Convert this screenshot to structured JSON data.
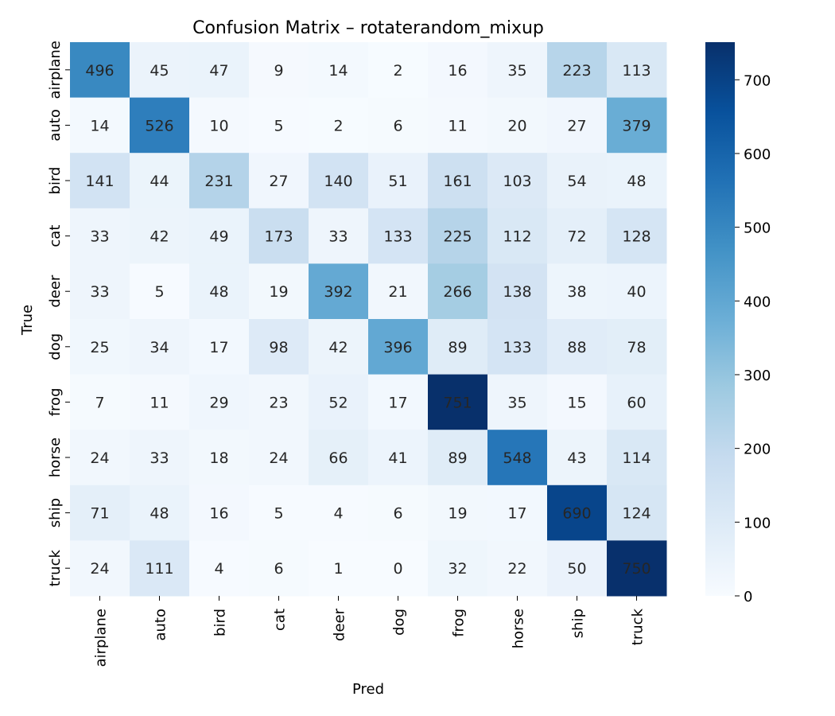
{
  "chart_data": {
    "type": "heatmap",
    "title": "Confusion Matrix – rotaterandom_mixup",
    "xlabel": "Pred",
    "ylabel": "True",
    "x_categories": [
      "airplane",
      "auto",
      "bird",
      "cat",
      "deer",
      "dog",
      "frog",
      "horse",
      "ship",
      "truck"
    ],
    "y_categories": [
      "airplane",
      "auto",
      "bird",
      "cat",
      "deer",
      "dog",
      "frog",
      "horse",
      "ship",
      "truck"
    ],
    "values": [
      [
        496,
        45,
        47,
        9,
        14,
        2,
        16,
        35,
        223,
        113
      ],
      [
        14,
        526,
        10,
        5,
        2,
        6,
        11,
        20,
        27,
        379
      ],
      [
        141,
        44,
        231,
        27,
        140,
        51,
        161,
        103,
        54,
        48
      ],
      [
        33,
        42,
        49,
        173,
        33,
        133,
        225,
        112,
        72,
        128
      ],
      [
        33,
        5,
        48,
        19,
        392,
        21,
        266,
        138,
        38,
        40
      ],
      [
        25,
        34,
        17,
        98,
        42,
        396,
        89,
        133,
        88,
        78
      ],
      [
        7,
        11,
        29,
        23,
        52,
        17,
        751,
        35,
        15,
        60
      ],
      [
        24,
        33,
        18,
        24,
        66,
        41,
        89,
        548,
        43,
        114
      ],
      [
        71,
        48,
        16,
        5,
        4,
        6,
        19,
        17,
        690,
        124
      ],
      [
        24,
        111,
        4,
        6,
        1,
        0,
        32,
        22,
        50,
        750
      ]
    ],
    "colorbar": {
      "range": [
        0,
        751
      ],
      "ticks": [
        0,
        100,
        200,
        300,
        400,
        500,
        600,
        700
      ],
      "colormap": "Blues"
    },
    "colors": {
      "light": "#f7fbff",
      "dark": "#08306b",
      "text_dark": "#262626",
      "text_light": "#ffffff"
    }
  }
}
